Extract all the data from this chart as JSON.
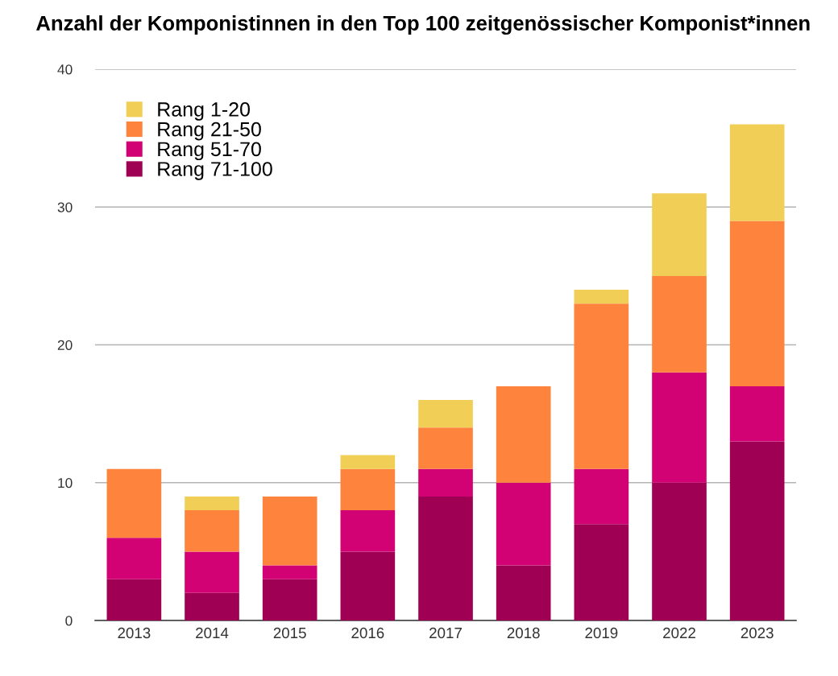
{
  "chart_data": {
    "type": "bar",
    "title": "Anzahl der Komponistinnen in den Top 100 zeitgenössischer Komponist*innen",
    "categories": [
      "2013",
      "2014",
      "2015",
      "2016",
      "2017",
      "2018",
      "2019",
      "2022",
      "2023"
    ],
    "stacked": true,
    "series": [
      {
        "name": "Rang 71-100",
        "color": "#a00054",
        "values": [
          3,
          2,
          3,
          5,
          9,
          4,
          7,
          10,
          13
        ]
      },
      {
        "name": "Rang 51-70",
        "color": "#d30274",
        "values": [
          3,
          3,
          1,
          3,
          2,
          6,
          4,
          8,
          4
        ]
      },
      {
        "name": "Rang 21-50",
        "color": "#fe833c",
        "values": [
          5,
          3,
          5,
          3,
          3,
          7,
          12,
          7,
          12
        ]
      },
      {
        "name": "Rang 1-20",
        "color": "#f1cf57",
        "values": [
          0,
          1,
          0,
          1,
          2,
          0,
          1,
          6,
          7
        ]
      }
    ],
    "ylim": [
      0,
      40
    ],
    "yticks": [
      0,
      10,
      20,
      30,
      40
    ],
    "grid": "y",
    "legend": "top left"
  }
}
